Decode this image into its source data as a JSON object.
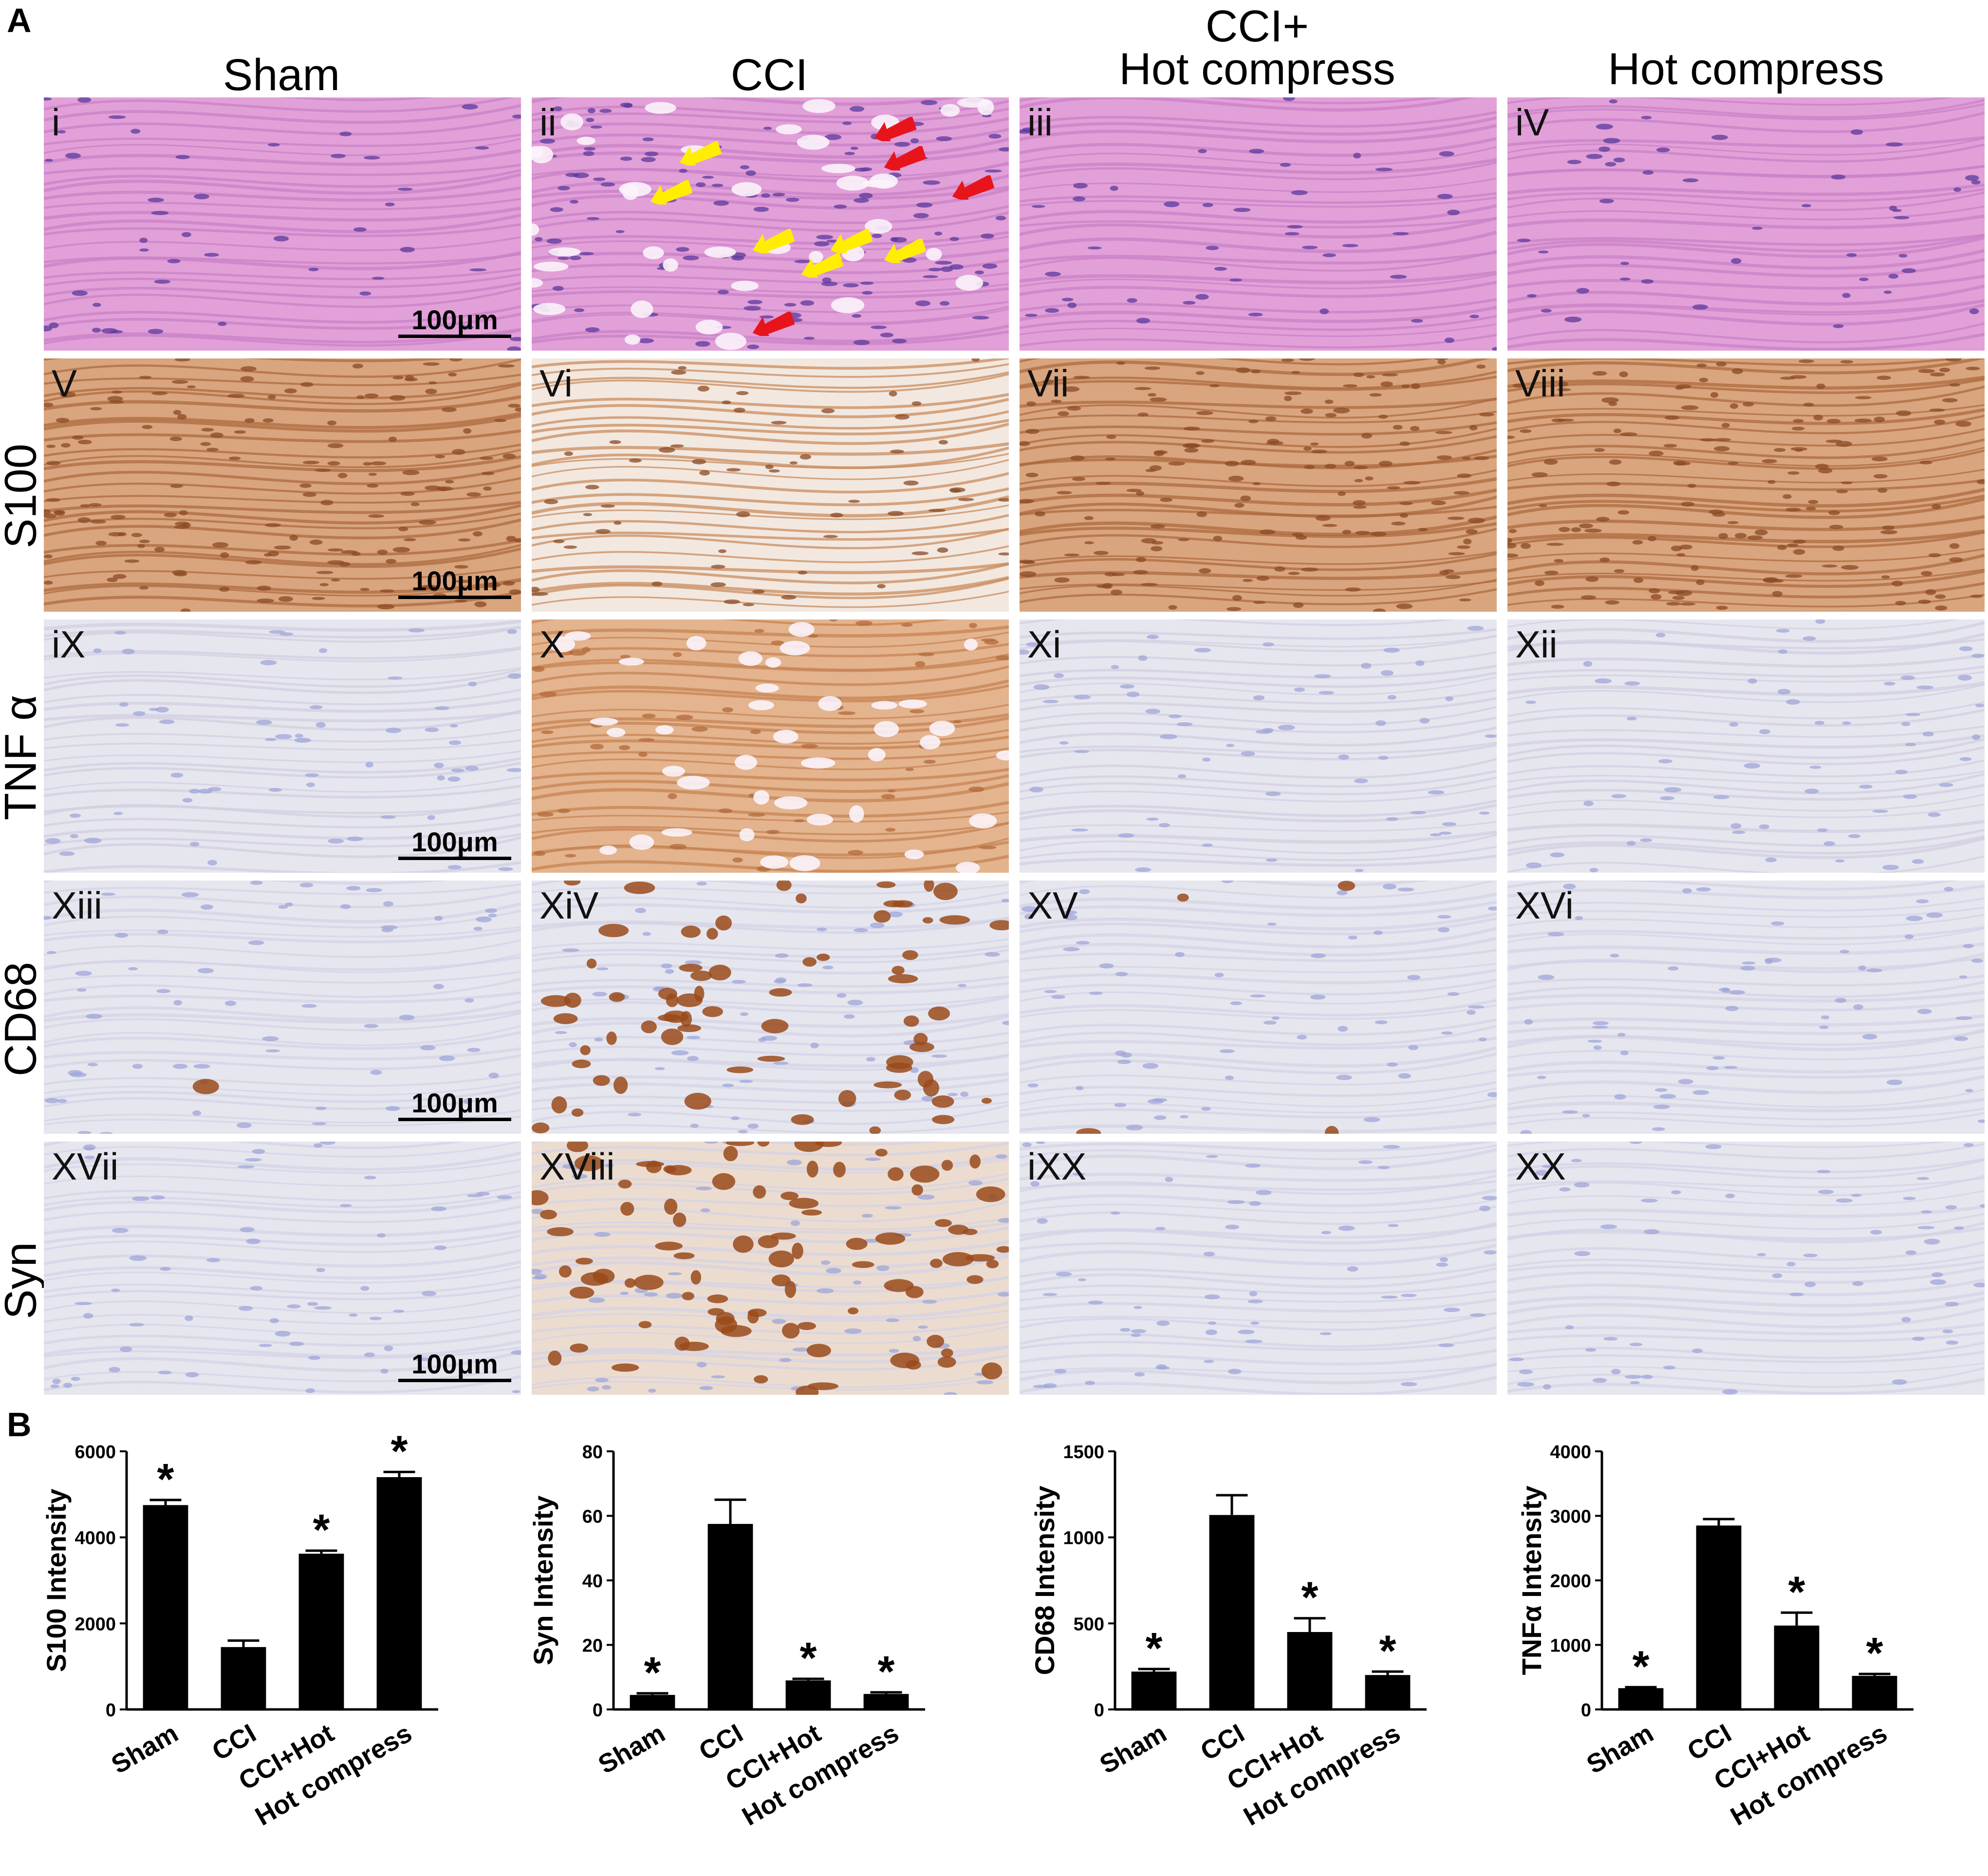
{
  "figure": {
    "panel_a_letter": "A",
    "panel_b_letter": "B",
    "column_headers": [
      "Sham",
      "CCI",
      "CCI+\nHot compress",
      "Hot compress"
    ],
    "row_labels": [
      "",
      "S100",
      "TNF α",
      "CD68",
      "Syn"
    ],
    "scale_bar_label": "100μm",
    "sublabels": [
      [
        "i",
        "ii",
        "iii",
        "iV"
      ],
      [
        "V",
        "Vi",
        "Vii",
        "Viii"
      ],
      [
        "iX",
        "X",
        "Xi",
        "Xii"
      ],
      [
        "Xiii",
        "XiV",
        "XV",
        "XVi"
      ],
      [
        "XVii",
        "XViii",
        "iXX",
        "XX"
      ]
    ],
    "stain_colors": {
      "he": "#e2a0d8",
      "he_dark": "#5a3a9c",
      "brown_strong": "#c88a5a",
      "brown_light": "#f1e4d7",
      "blue_bg": "#e6e6ef",
      "blue_cell": "#9ea6d8",
      "dab": "#9a4a1a"
    },
    "arrow_colors": {
      "red": "#e8141c",
      "yellow": "#ffee00"
    }
  },
  "chart_data": [
    {
      "type": "bar",
      "categories": [
        "Sham",
        "CCI",
        "CCI+Hot",
        "Hot compress"
      ],
      "values": [
        4750,
        1450,
        3620,
        5400
      ],
      "errors": [
        120,
        150,
        70,
        120
      ],
      "significant": [
        true,
        false,
        true,
        true
      ],
      "ylabel": "S100 Intensity",
      "ylim": [
        0,
        6000
      ],
      "yticks": [
        0,
        2000,
        4000,
        6000
      ],
      "marker": "*"
    },
    {
      "type": "bar",
      "categories": [
        "Sham",
        "CCI",
        "CCI+Hot",
        "Hot compress"
      ],
      "values": [
        4.5,
        57.5,
        9,
        4.8
      ],
      "errors": [
        0.5,
        7.5,
        0.5,
        0.5
      ],
      "significant": [
        true,
        false,
        true,
        true
      ],
      "ylabel": "Syn Intensity",
      "ylim": [
        0,
        80
      ],
      "yticks": [
        0,
        20,
        40,
        60,
        80
      ],
      "marker": "*"
    },
    {
      "type": "bar",
      "categories": [
        "Sham",
        "CCI",
        "CCI+Hot",
        "Hot compress"
      ],
      "values": [
        220,
        1130,
        450,
        200
      ],
      "errors": [
        15,
        115,
        80,
        20
      ],
      "significant": [
        true,
        false,
        true,
        true
      ],
      "ylabel": "CD68 Intensity",
      "ylim": [
        0,
        1500
      ],
      "yticks": [
        0,
        500,
        1000,
        1500
      ],
      "marker": "*"
    },
    {
      "type": "bar",
      "categories": [
        "Sham",
        "CCI",
        "CCI+Hot",
        "Hot compress"
      ],
      "values": [
        330,
        2850,
        1300,
        520
      ],
      "errors": [
        15,
        100,
        200,
        30
      ],
      "significant": [
        true,
        false,
        true,
        true
      ],
      "ylabel": "TNFα Intensity",
      "ylim": [
        0,
        4000
      ],
      "yticks": [
        0,
        1000,
        2000,
        3000,
        4000
      ],
      "marker": "*"
    }
  ]
}
